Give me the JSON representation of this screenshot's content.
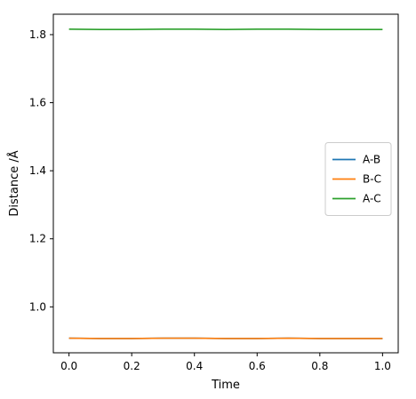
{
  "chart_data": {
    "type": "line",
    "title": "",
    "xlabel": "Time",
    "ylabel": "Distance /Å",
    "xlim": [
      -0.05,
      1.05
    ],
    "ylim": [
      0.865,
      1.86
    ],
    "x_ticks": [
      0.0,
      0.2,
      0.4,
      0.6,
      0.8,
      1.0
    ],
    "x_tick_labels": [
      "0.0",
      "0.2",
      "0.4",
      "0.6",
      "0.8",
      "1.0"
    ],
    "y_ticks": [
      1.0,
      1.2,
      1.4,
      1.6,
      1.8
    ],
    "y_tick_labels": [
      "1.0",
      "1.2",
      "1.4",
      "1.6",
      "1.8"
    ],
    "grid": false,
    "legend_position": "center-right",
    "x": [
      0.0,
      0.1,
      0.2,
      0.3,
      0.4,
      0.5,
      0.6,
      0.7,
      0.8,
      0.9,
      1.0
    ],
    "series": [
      {
        "name": "A-B",
        "color": "#1f77b4",
        "values": [
          0.908,
          0.907,
          0.907,
          0.908,
          0.908,
          0.907,
          0.907,
          0.908,
          0.907,
          0.907,
          0.907
        ]
      },
      {
        "name": "B-C",
        "color": "#ff7f0e",
        "values": [
          0.908,
          0.907,
          0.907,
          0.908,
          0.908,
          0.907,
          0.907,
          0.908,
          0.907,
          0.907,
          0.907
        ]
      },
      {
        "name": "A-C",
        "color": "#2ca02c",
        "values": [
          1.816,
          1.815,
          1.815,
          1.816,
          1.816,
          1.815,
          1.816,
          1.816,
          1.815,
          1.815,
          1.815
        ]
      }
    ]
  }
}
